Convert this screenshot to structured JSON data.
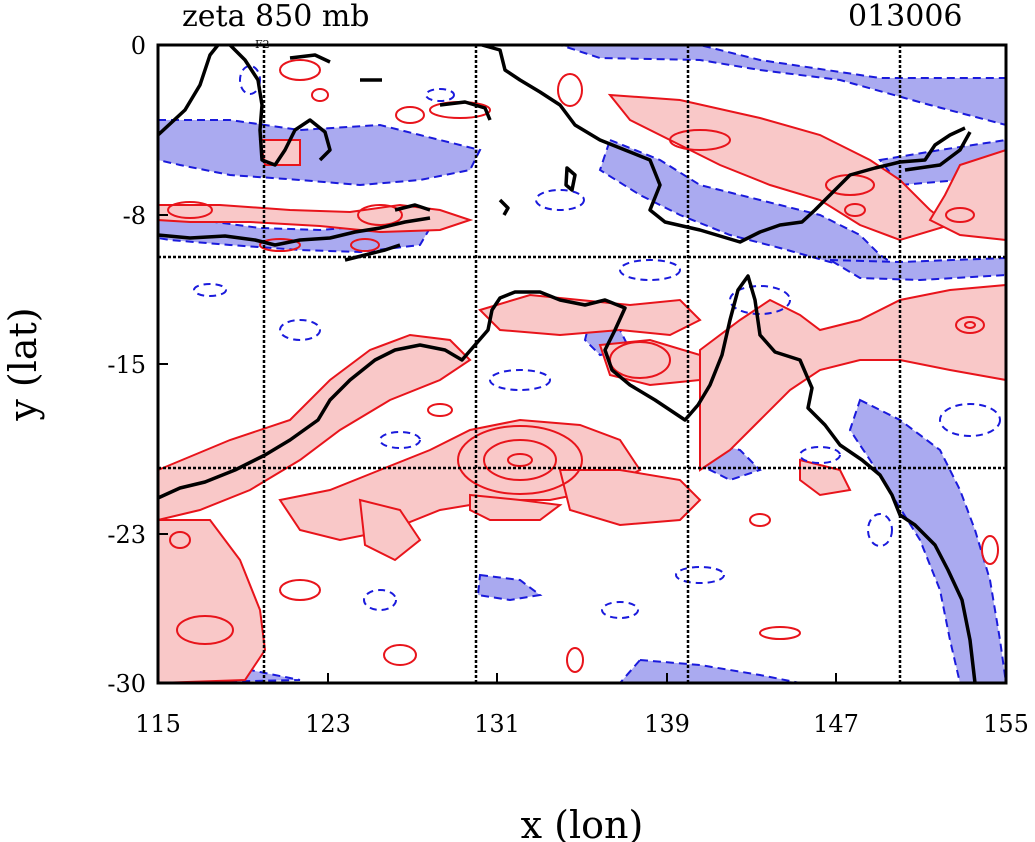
{
  "header": {
    "title": "zeta 850 mb",
    "timestamp": "013006"
  },
  "axes": {
    "xlabel": "x (lon)",
    "ylabel": "y (lat)",
    "x_range": [
      115,
      155
    ],
    "y_range": [
      -30,
      0
    ],
    "x_ticks": [
      "115",
      "123",
      "131",
      "139",
      "147",
      "155"
    ],
    "y_ticks": [
      "0",
      "-8",
      "-15",
      "-23",
      "-30"
    ]
  },
  "grid_lines": {
    "lon": [
      120,
      130,
      140,
      150
    ],
    "lat": [
      -10,
      -20
    ]
  },
  "small_label": "F2",
  "colors": {
    "positive_fill": "#f9c8c8",
    "positive_line": "#e8141b",
    "negative_fill": "#aaaaf0",
    "negative_line": "#1a1adc",
    "coastline": "#000000"
  }
}
